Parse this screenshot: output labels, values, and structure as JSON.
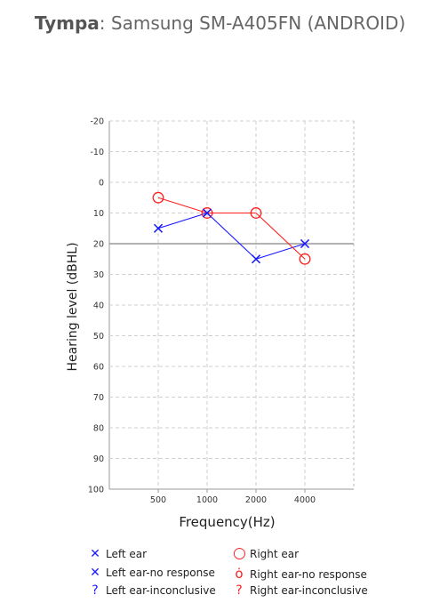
{
  "header": {
    "app_name": "Tympa",
    "separator": ": ",
    "device": "Samsung SM-A405FN (ANDROID)"
  },
  "chart_data": {
    "type": "line",
    "xlabel": "Frequency(Hz)",
    "ylabel": "Hearing level (dBHL)",
    "categories": [
      "500",
      "1000",
      "2000",
      "4000"
    ],
    "y_ticks": [
      "-20",
      "-10",
      "0",
      "10",
      "20",
      "30",
      "40",
      "50",
      "60",
      "70",
      "80",
      "90",
      "100"
    ],
    "ylim": [
      -20,
      100
    ],
    "y_inverted": true,
    "reference_line": 20,
    "grid": true,
    "series": [
      {
        "name": "Left ear",
        "marker": "x",
        "color": "#1a1aff",
        "values": [
          15,
          10,
          25,
          20
        ]
      },
      {
        "name": "Right ear",
        "marker": "o",
        "color": "#ff2020",
        "values": [
          5,
          10,
          10,
          25
        ]
      }
    ],
    "legend": {
      "placement": "bottom",
      "items": [
        {
          "label": "Left ear",
          "symbol": "×",
          "color": "#1a1aff"
        },
        {
          "label": "Right ear",
          "symbol": "○",
          "color": "#ff2020"
        },
        {
          "label": "Left ear-no response",
          "symbol": "×",
          "color": "#1a1aff"
        },
        {
          "label": "Right ear-no response",
          "symbol": "○",
          "color": "#ff2020"
        },
        {
          "label": "Left ear-inconclusive",
          "symbol": "?",
          "color": "#1a1aff"
        },
        {
          "label": "Right ear-inconclusive",
          "symbol": "?",
          "color": "#ff2020"
        }
      ]
    }
  }
}
